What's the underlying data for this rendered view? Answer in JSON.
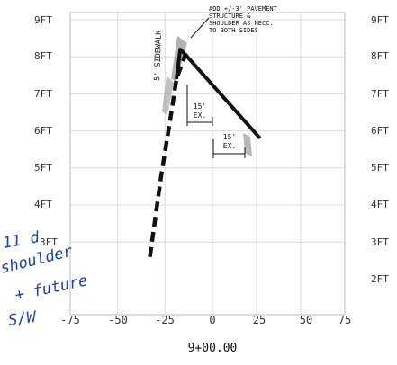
{
  "elevation_labels_left": [
    "9FT",
    "8FT",
    "7FT",
    "6FT",
    "5FT",
    "4FT",
    "3FT"
  ],
  "elevation_labels_right": [
    "9FT",
    "8FT",
    "7FT",
    "6FT",
    "5FT",
    "4FT",
    "3FT",
    "2FT"
  ],
  "x_ticks": [
    "-75",
    "-50",
    "-25",
    "0",
    "25",
    "50",
    "75"
  ],
  "station": "9+00.00",
  "annotations": {
    "sidewalk": "5' SIDEWALK",
    "pavement_note": [
      "ADD +/-3' PAVEMENT",
      "STRUCTURE &",
      "SHOULDER AS NECC.",
      "TO BOTH SIDES"
    ],
    "dim1": [
      "15'",
      "EX."
    ],
    "dim2": [
      "15'",
      "EX."
    ]
  },
  "handwritten": [
    "11 d",
    "shoulder",
    "+ future",
    "S/W"
  ],
  "colors": {
    "ink": "#111111",
    "grid": "#dcdcdc",
    "handwriting": "#1c3fb0",
    "hatch": "#8a8a8a"
  },
  "chart_data": {
    "type": "line",
    "title": "",
    "xlabel": "9+00.00",
    "ylabel": "",
    "xlim": [
      -75,
      75
    ],
    "ylim": [
      2.4,
      9.2
    ],
    "x_ticks": [
      -75,
      -50,
      -25,
      0,
      25,
      50,
      75
    ],
    "series": [
      {
        "style": "solid",
        "points": [
          [
            -19,
            7.4
          ],
          [
            -17,
            8.2
          ],
          [
            -15,
            8.1
          ],
          [
            27,
            5.8
          ]
        ]
      },
      {
        "style": "dashed",
        "points": [
          [
            -33,
            2.6
          ],
          [
            -27,
            4.8
          ],
          [
            -22,
            6.4
          ],
          [
            -19,
            7.4
          ],
          [
            -14,
            8.1
          ]
        ]
      }
    ],
    "grid": true
  }
}
